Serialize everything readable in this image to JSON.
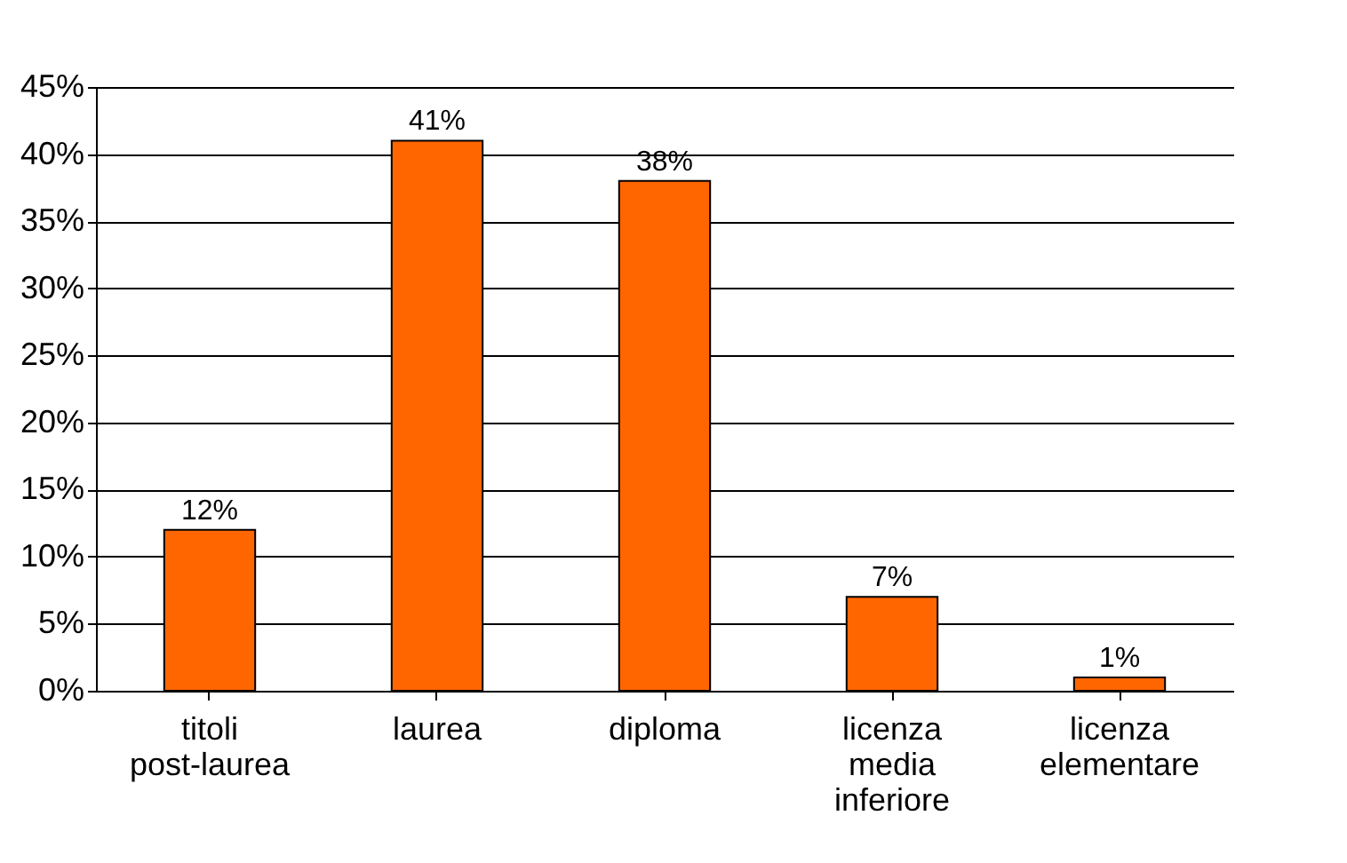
{
  "chart_data": {
    "type": "bar",
    "categories": [
      "titoli post-laurea",
      "laurea",
      "diploma",
      "licenza media inferiore",
      "licenza elementare"
    ],
    "values": [
      12,
      41,
      38,
      7,
      1
    ],
    "value_labels": [
      "12%",
      "41%",
      "38%",
      "7%",
      "1%"
    ],
    "color": "#ff6600",
    "ylim": [
      0,
      45
    ],
    "yticks": [
      {
        "value": 0,
        "label": "0%"
      },
      {
        "value": 5,
        "label": "5%"
      },
      {
        "value": 10,
        "label": "10%"
      },
      {
        "value": 15,
        "label": "15%"
      },
      {
        "value": 20,
        "label": "20%"
      },
      {
        "value": 25,
        "label": "25%"
      },
      {
        "value": 30,
        "label": "30%"
      },
      {
        "value": 35,
        "label": "35%"
      },
      {
        "value": 40,
        "label": "40%"
      },
      {
        "value": 45,
        "label": "45%"
      }
    ],
    "grid": "y"
  }
}
